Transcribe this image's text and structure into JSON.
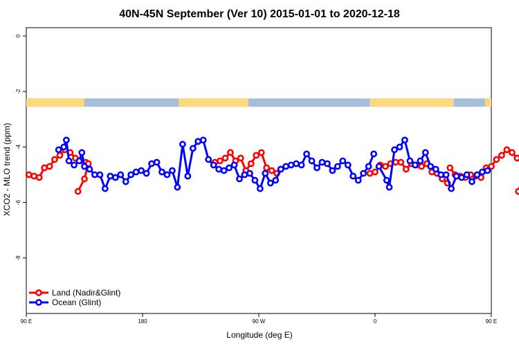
{
  "chart_data": {
    "type": "line",
    "title": "40N-45N September (Ver 10)   2015-01-01 to 2020-12-18",
    "xlabel": "Longitude (deg E)",
    "ylabel": "XCO2 - MLO trend (ppm)",
    "xlim": [
      90,
      450
    ],
    "ylim": [
      -10,
      0.3
    ],
    "x_ticks": [
      {
        "value": 90,
        "label": "90 E"
      },
      {
        "value": 180,
        "label": "180"
      },
      {
        "value": 270,
        "label": "90 W"
      },
      {
        "value": 360,
        "label": "0"
      },
      {
        "value": 450,
        "label": "90 E"
      },
      {
        "value": 540,
        "label": "180"
      }
    ],
    "y_ticks": [
      {
        "value": 0,
        "label": "0"
      },
      {
        "value": -2,
        "label": "-2"
      },
      {
        "value": -4,
        "label": "-4"
      },
      {
        "value": -6,
        "label": "-6"
      },
      {
        "value": -8,
        "label": "-8"
      }
    ],
    "legend_position": "bottom-left",
    "land_ocean_bar": {
      "y_range": [
        -2.55,
        -2.25
      ],
      "ocean_color": "#a6bddb",
      "land_color": "#fdd87e",
      "land_segments": [
        [
          90,
          135
        ],
        [
          208,
          262
        ],
        [
          356,
          421
        ],
        [
          445,
          467
        ]
      ]
    },
    "series": [
      {
        "name": "Land (Nadir&Glint)",
        "color": "#ff0000",
        "segments": [
          {
            "x": [
              92,
              96,
              100,
              104,
              108,
              112,
              116,
              120,
              124,
              128,
              132,
              136,
              138,
              135,
              130
            ],
            "y": [
              -5.0,
              -5.05,
              -5.1,
              -4.75,
              -4.7,
              -4.45,
              -4.3,
              -4.1,
              -4.2,
              -4.4,
              -4.5,
              -4.55,
              -4.6,
              -5.15,
              -5.6
            ]
          },
          {
            "x": [
              236,
              240,
              244,
              248,
              252,
              256,
              260,
              264,
              268,
              272,
              276,
              280,
              284
            ],
            "y": [
              -4.55,
              -4.5,
              -4.4,
              -4.2,
              -4.5,
              -4.4,
              -4.85,
              -4.6,
              -4.3,
              -4.2,
              -4.75,
              -4.85,
              -4.95
            ]
          },
          {
            "x": [
              356,
              360,
              364,
              368,
              372,
              376,
              380,
              384,
              388,
              392,
              396,
              400,
              404,
              408,
              412,
              416
            ],
            "y": [
              -4.95,
              -4.9,
              -4.65,
              -4.7,
              -4.6,
              -4.55,
              -4.55,
              -4.8,
              -4.6,
              -4.65,
              -4.7,
              -4.6,
              -4.9,
              -4.95,
              -5.15,
              -5.3
            ]
          },
          {
            "x": [
              418,
              422,
              426,
              430,
              434,
              438,
              442,
              446,
              450,
              454,
              458,
              462,
              466,
              470,
              474,
              476,
              474,
              471
            ],
            "y": [
              -4.75,
              -5.0,
              -5.05,
              -5.1,
              -5.0,
              -5.05,
              -5.1,
              -4.75,
              -4.7,
              -4.45,
              -4.3,
              -4.1,
              -4.2,
              -4.4,
              -4.5,
              -4.55,
              -5.15,
              -5.6
            ]
          }
        ]
      },
      {
        "name": "Ocean (Glint)",
        "color": "#0000ff",
        "segments": [
          {
            "x": [
              115,
              119,
              121,
              123,
              127,
              131,
              133,
              135,
              139,
              143,
              147,
              151,
              155,
              159,
              163,
              167,
              171,
              175,
              179,
              183,
              187,
              191,
              195,
              199,
              203,
              207,
              211,
              215,
              219,
              223
            ],
            "y": [
              -4.1,
              -4.0,
              -3.75,
              -4.5,
              -4.65,
              -4.5,
              -4.2,
              -4.7,
              -4.8,
              -5.0,
              -5.0,
              -5.5,
              -5.05,
              -5.1,
              -5.0,
              -5.25,
              -5.0,
              -4.9,
              -4.85,
              -4.95,
              -4.6,
              -4.55,
              -4.9,
              -5.0,
              -4.85,
              -5.45,
              -3.9,
              -5.05,
              -4.05,
              -3.8
            ]
          },
          {
            "x": [
              223,
              227,
              231,
              235,
              239,
              243,
              247,
              251,
              255,
              259,
              263,
              267,
              271,
              275,
              279,
              283,
              287
            ],
            "y": [
              -3.8,
              -3.75,
              -4.45,
              -4.65,
              -4.8,
              -4.85,
              -4.75,
              -4.65,
              -5.15,
              -5.0,
              -4.95,
              -5.2,
              -5.5,
              -4.95,
              -5.3,
              -5.2,
              -4.8
            ]
          },
          {
            "x": [
              287,
              291,
              295,
              299,
              303,
              307,
              311,
              315,
              319,
              323,
              327,
              331,
              335,
              339,
              343,
              347,
              351,
              355,
              359
            ],
            "y": [
              -4.8,
              -4.7,
              -4.65,
              -4.6,
              -4.65,
              -4.25,
              -4.5,
              -4.75,
              -4.55,
              -4.6,
              -4.85,
              -4.7,
              -4.5,
              -4.65,
              -5.05,
              -5.2,
              -4.95,
              -4.7,
              -4.25
            ]
          },
          {
            "x": [
              363,
              369,
              371,
              375,
              379,
              383,
              387,
              391,
              395,
              399,
              403,
              407,
              411,
              415,
              419,
              423,
              427,
              431,
              435,
              439,
              443,
              447
            ],
            "y": [
              -4.7,
              -5.2,
              -5.45,
              -4.1,
              -4.0,
              -3.75,
              -4.5,
              -4.65,
              -4.5,
              -4.2,
              -4.7,
              -4.8,
              -5.0,
              -5.0,
              -5.5,
              -5.05,
              -5.1,
              -5.0,
              -5.25,
              -5.0,
              -4.9,
              -4.85
            ]
          }
        ]
      }
    ]
  }
}
